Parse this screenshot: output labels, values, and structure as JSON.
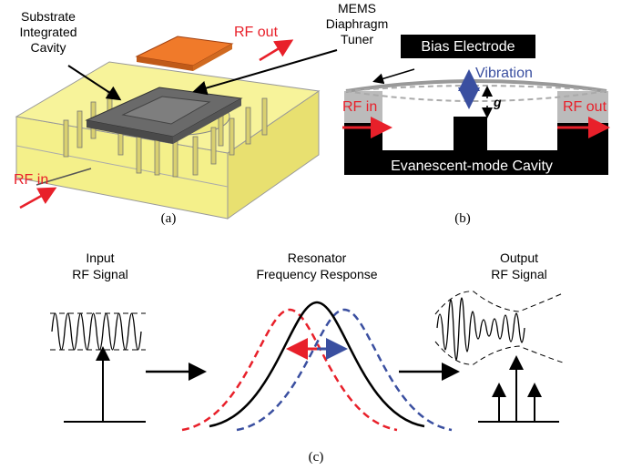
{
  "panel_a": {
    "substrate_label": [
      "Substrate",
      "Integrated",
      "Cavity"
    ],
    "rf_out": "RF out",
    "rf_in": "RF in",
    "tuner_label": [
      "MEMS",
      "Diaphragm",
      "Tuner"
    ],
    "caption": "(a)"
  },
  "panel_b": {
    "bias_electrode": "Bias Electrode",
    "vibration": "Vibration",
    "gap": "g",
    "rf_in": "RF in",
    "rf_out": "RF out",
    "cavity": "Evanescent-mode Cavity",
    "caption": "(b)"
  },
  "panel_c": {
    "input_label": [
      "Input",
      "RF Signal"
    ],
    "response_label": [
      "Resonator",
      "Frequency Response"
    ],
    "output_label": [
      "Output",
      "RF Signal"
    ],
    "caption": "(c)"
  }
}
